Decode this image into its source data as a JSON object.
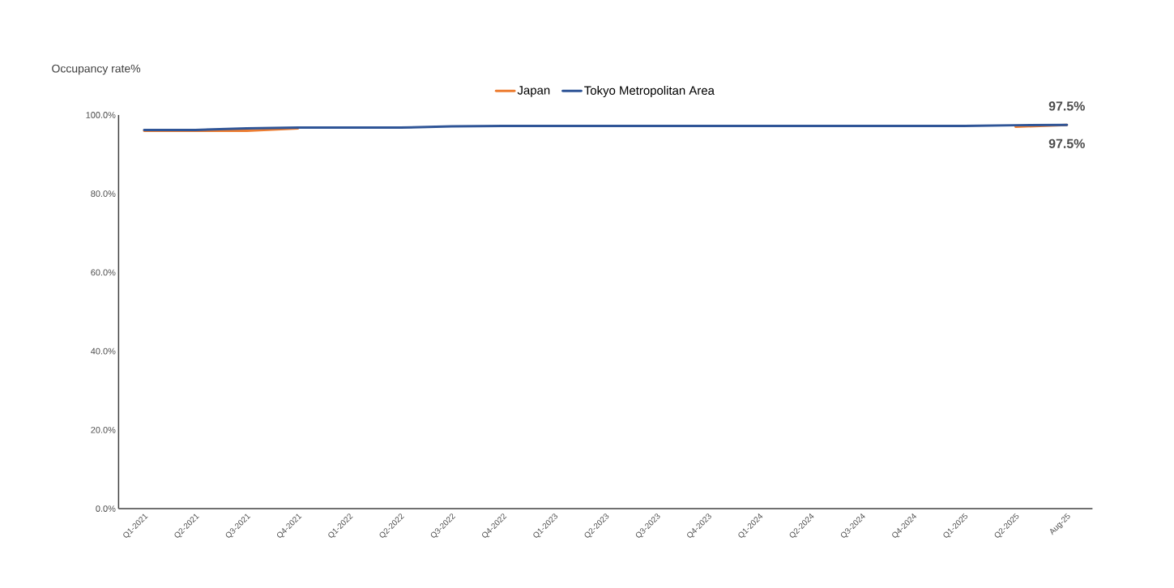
{
  "chart_data": {
    "type": "line",
    "ylabel": "Occupancy rate%",
    "categories": [
      "Q1-2021",
      "Q2-2021",
      "Q3-2021",
      "Q4-2021",
      "Q1-2022",
      "Q2-2022",
      "Q3-2022",
      "Q4-2022",
      "Q1-2023",
      "Q2-2023",
      "Q3-2023",
      "Q4-2023",
      "Q1-2024",
      "Q2-2024",
      "Q3-2024",
      "Q4-2024",
      "Q1-2025",
      "Q2-2025",
      "Aug-25"
    ],
    "series": [
      {
        "name": "Japan",
        "color": "#ed7d31",
        "values": [
          96.0,
          96.0,
          96.0,
          96.6,
          null,
          null,
          null,
          null,
          null,
          null,
          null,
          null,
          null,
          null,
          null,
          null,
          null,
          97.0,
          97.5
        ],
        "value_labels": [
          null,
          null,
          null,
          null,
          null,
          null,
          null,
          null,
          null,
          null,
          null,
          null,
          null,
          null,
          null,
          null,
          null,
          null,
          "97.5%"
        ]
      },
      {
        "name": "Tokyo Metropolitan Area",
        "color": "#2f5597",
        "values": [
          96.2,
          96.2,
          96.6,
          96.8,
          96.8,
          96.8,
          97.1,
          97.2,
          97.2,
          97.2,
          97.2,
          97.2,
          97.2,
          97.2,
          97.2,
          97.2,
          97.2,
          97.4,
          97.5
        ],
        "value_labels": [
          null,
          null,
          null,
          null,
          null,
          null,
          null,
          null,
          null,
          null,
          null,
          null,
          null,
          null,
          null,
          null,
          null,
          null,
          "97.5%"
        ]
      }
    ],
    "ylim": [
      0,
      100
    ],
    "yticks": [
      {
        "value": 0,
        "label": "0.0%"
      },
      {
        "value": 20,
        "label": "20.0%"
      },
      {
        "value": 40,
        "label": "40.0%"
      },
      {
        "value": 60,
        "label": "60.0%"
      },
      {
        "value": 80,
        "label": "80.0%"
      },
      {
        "value": 100,
        "label": "100.0%"
      }
    ],
    "grid": false,
    "legend": "top",
    "marker": "none",
    "line_style": "solid"
  }
}
